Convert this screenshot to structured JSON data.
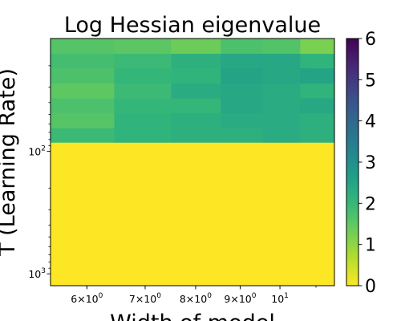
{
  "chart_data": {
    "type": "heatmap",
    "title": "Log Hessian eigenvalue",
    "xlabel": "Width of model",
    "ylabel": "T (Learning Rate)",
    "x_scale": "log",
    "y_scale": "log",
    "y_inverted": true,
    "x_ticks": [
      {
        "value": 6,
        "mantissa": "6",
        "exp": "0"
      },
      {
        "value": 7,
        "mantissa": "7",
        "exp": "0"
      },
      {
        "value": 8,
        "mantissa": "8",
        "exp": "0"
      },
      {
        "value": 9,
        "mantissa": "9",
        "exp": "0"
      },
      {
        "value": 10,
        "mantissa": "",
        "exp": "1"
      }
    ],
    "y_ticks": [
      {
        "value": 100,
        "exp": "2"
      },
      {
        "value": 1000,
        "exp": "3"
      }
    ],
    "x_edges": [
      5.45,
      6.45,
      7.5,
      8.55,
      9.55,
      10.55,
      11.55
    ],
    "y_edges": [
      12,
      16,
      21,
      28,
      37,
      49,
      65,
      85,
      160,
      300,
      550,
      1250
    ],
    "values": [
      [
        1.62,
        1.55,
        1.35,
        1.72,
        1.65,
        1.22
      ],
      [
        1.82,
        1.92,
        2.22,
        2.42,
        2.42,
        2.12
      ],
      [
        1.72,
        2.02,
        2.12,
        2.52,
        2.42,
        2.52
      ],
      [
        1.52,
        1.92,
        2.32,
        2.42,
        2.32,
        2.12
      ],
      [
        1.72,
        2.02,
        2.02,
        2.42,
        2.32,
        2.42
      ],
      [
        1.62,
        2.12,
        2.22,
        2.32,
        2.32,
        2.22
      ],
      [
        1.92,
        2.12,
        2.22,
        2.22,
        2.32,
        2.22
      ],
      [
        0,
        0,
        0,
        0,
        0,
        0
      ],
      [
        0,
        0,
        0,
        0,
        0,
        0
      ],
      [
        0,
        0,
        0,
        0,
        0,
        0
      ],
      [
        0,
        0,
        0,
        0,
        0,
        0
      ]
    ],
    "colorbar": {
      "colormap": "viridis_r",
      "vmin": 0,
      "vmax": 6,
      "ticks": [
        "0",
        "1",
        "2",
        "3",
        "4",
        "5",
        "6"
      ]
    }
  }
}
